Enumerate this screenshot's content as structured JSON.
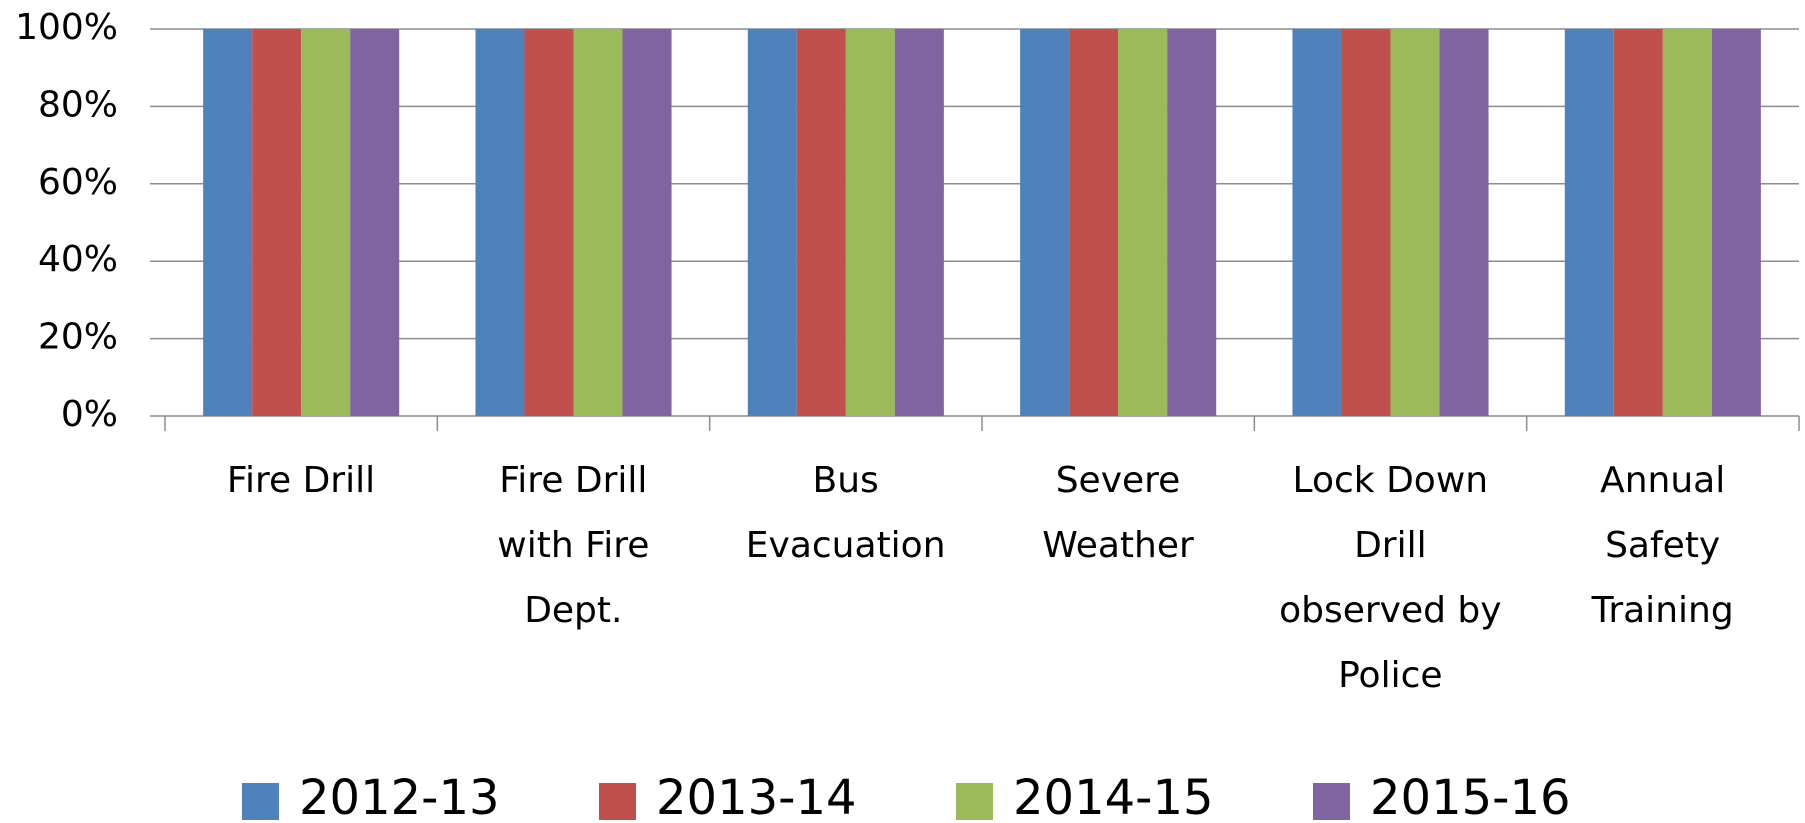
{
  "chart_data": {
    "type": "bar",
    "categories": [
      "Fire Drill",
      "Fire Drill\nwith Fire\nDept.",
      "Bus\nEvacuation",
      "Severe\nWeather",
      "Lock Down\nDrill\nobserved by\nPolice",
      "Annual\nSafety\nTraining"
    ],
    "series": [
      {
        "name": "2012-13",
        "color": "#4f81bd",
        "values": [
          100,
          100,
          100,
          100,
          100,
          100
        ]
      },
      {
        "name": "2013-14",
        "color": "#c0504d",
        "values": [
          100,
          100,
          100,
          100,
          100,
          100
        ]
      },
      {
        "name": "2014-15",
        "color": "#9bbb59",
        "values": [
          100,
          100,
          100,
          100,
          100,
          100
        ]
      },
      {
        "name": "2015-16",
        "color": "#8064a2",
        "values": [
          100,
          100,
          100,
          100,
          100,
          100
        ]
      }
    ],
    "ylim": [
      0,
      100
    ],
    "yticks": [
      {
        "value": 0,
        "label": "0%"
      },
      {
        "value": 20,
        "label": "20%"
      },
      {
        "value": 40,
        "label": "40%"
      },
      {
        "value": 60,
        "label": "60%"
      },
      {
        "value": 80,
        "label": "80%"
      },
      {
        "value": 100,
        "label": "100%"
      }
    ],
    "grid": true,
    "legend": "bottom"
  }
}
